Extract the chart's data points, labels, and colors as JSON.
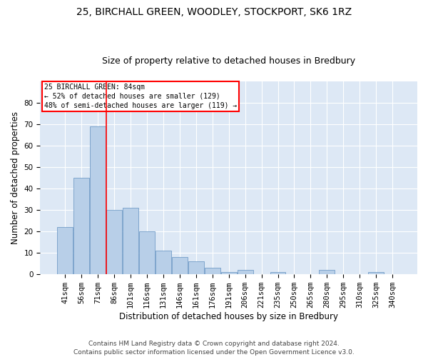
{
  "title": "25, BIRCHALL GREEN, WOODLEY, STOCKPORT, SK6 1RZ",
  "subtitle": "Size of property relative to detached houses in Bredbury",
  "xlabel": "Distribution of detached houses by size in Bredbury",
  "ylabel": "Number of detached properties",
  "footer_line1": "Contains HM Land Registry data © Crown copyright and database right 2024.",
  "footer_line2": "Contains public sector information licensed under the Open Government Licence v3.0.",
  "categories": [
    "41sqm",
    "56sqm",
    "71sqm",
    "86sqm",
    "101sqm",
    "116sqm",
    "131sqm",
    "146sqm",
    "161sqm",
    "176sqm",
    "191sqm",
    "206sqm",
    "221sqm",
    "235sqm",
    "250sqm",
    "265sqm",
    "280sqm",
    "295sqm",
    "310sqm",
    "325sqm",
    "340sqm"
  ],
  "values": [
    22,
    45,
    69,
    30,
    31,
    20,
    11,
    8,
    6,
    3,
    1,
    2,
    0,
    1,
    0,
    0,
    2,
    0,
    0,
    1,
    0
  ],
  "bar_color": "#b8cfe8",
  "bar_edge_color": "#6090c0",
  "vline_x_index": 2.5,
  "vline_color": "red",
  "annotation_text": "25 BIRCHALL GREEN: 84sqm\n← 52% of detached houses are smaller (129)\n48% of semi-detached houses are larger (119) →",
  "annotation_box_color": "white",
  "annotation_box_edge": "red",
  "ylim": [
    0,
    90
  ],
  "yticks": [
    0,
    10,
    20,
    30,
    40,
    50,
    60,
    70,
    80
  ],
  "bg_color": "#dde8f5",
  "grid_color": "white",
  "title_fontsize": 10,
  "subtitle_fontsize": 9,
  "label_fontsize": 8.5,
  "tick_fontsize": 7.5,
  "footer_fontsize": 6.5,
  "figwidth": 6.0,
  "figheight": 5.0,
  "dpi": 100
}
